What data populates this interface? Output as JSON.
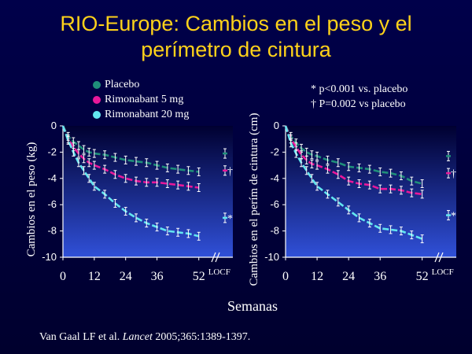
{
  "slide": {
    "title_line1": "RIO-Europe: Cambios en el peso y el",
    "title_line2": "perímetro de cintura",
    "citation_authors": "Van Gaal LF et al.",
    "citation_journal": "Lancet",
    "citation_rest": "2005;365:1389-1397."
  },
  "legend": [
    {
      "name": "Placebo",
      "color": "#1f8f7a"
    },
    {
      "name": "Rimonabant 5 mg",
      "color": "#e8189a"
    },
    {
      "name": "Rimonabant 20 mg",
      "color": "#62e6f0"
    }
  ],
  "notes": {
    "line1": "* p<0.001 vs. placebo",
    "line2": "† P=0.002 vs placebo"
  },
  "colors": {
    "placebo": "#1f8f7a",
    "rimonabant_5mg": "#e8189a",
    "rimonabant_20mg": "#62e6f0",
    "error_bar": "#ffffff",
    "axis": "#ffffff",
    "plot_bg_top": "#000030",
    "plot_bg_bottom": "#3050d8"
  },
  "chart_data": [
    {
      "type": "line",
      "ylabel": "Cambios en el peso (kg)",
      "xlabel": "Semanas",
      "x_ticks": [
        "0",
        "12",
        "24",
        "36",
        "52"
      ],
      "locf_label": "LOCF",
      "y_ticks": [
        "0",
        "-2",
        "-4",
        "-6",
        "-8",
        "-10"
      ],
      "xlim": [
        0,
        56
      ],
      "ylim": [
        -10,
        0
      ],
      "x": [
        0,
        2,
        4,
        6,
        8,
        10,
        12,
        16,
        20,
        24,
        28,
        32,
        36,
        40,
        44,
        48,
        52
      ],
      "series": [
        {
          "name": "Placebo",
          "values": [
            0,
            -0.8,
            -1.2,
            -1.5,
            -1.8,
            -2.0,
            -2.1,
            -2.2,
            -2.4,
            -2.6,
            -2.7,
            -2.8,
            -3.0,
            -3.2,
            -3.3,
            -3.4,
            -3.5
          ],
          "locf": -2.1,
          "marker": ""
        },
        {
          "name": "Rimonabant 5 mg",
          "values": [
            0,
            -1.0,
            -1.6,
            -2.1,
            -2.5,
            -2.8,
            -3.0,
            -3.3,
            -3.7,
            -4.0,
            -4.2,
            -4.3,
            -4.3,
            -4.4,
            -4.5,
            -4.6,
            -4.7
          ],
          "locf": -3.4,
          "marker": "†"
        },
        {
          "name": "Rimonabant 20 mg",
          "values": [
            0,
            -1.1,
            -2.0,
            -2.8,
            -3.4,
            -4.0,
            -4.6,
            -5.2,
            -5.9,
            -6.5,
            -7.0,
            -7.4,
            -7.7,
            -8.0,
            -8.1,
            -8.2,
            -8.4
          ],
          "locf": -7.0,
          "marker": "*"
        }
      ]
    },
    {
      "type": "line",
      "ylabel": "Cambios en el perím de cintura (cm)",
      "xlabel": "Semanas",
      "x_ticks": [
        "0",
        "12",
        "24",
        "36",
        "52"
      ],
      "locf_label": "LOCF",
      "y_ticks": [
        "0",
        "-2",
        "-4",
        "-6",
        "-8",
        "-10"
      ],
      "xlim": [
        0,
        56
      ],
      "ylim": [
        -10,
        0
      ],
      "x": [
        0,
        2,
        4,
        6,
        8,
        10,
        12,
        16,
        20,
        24,
        28,
        32,
        36,
        40,
        44,
        48,
        52
      ],
      "series": [
        {
          "name": "Placebo",
          "values": [
            0,
            -0.8,
            -1.3,
            -1.7,
            -2.0,
            -2.2,
            -2.3,
            -2.6,
            -2.8,
            -3.1,
            -3.2,
            -3.3,
            -3.5,
            -3.6,
            -3.8,
            -4.2,
            -4.4
          ],
          "locf": -2.3,
          "marker": ""
        },
        {
          "name": "Rimonabant 5 mg",
          "values": [
            0,
            -1.0,
            -1.6,
            -2.2,
            -2.6,
            -2.9,
            -3.0,
            -3.3,
            -3.7,
            -4.2,
            -4.4,
            -4.5,
            -4.8,
            -4.8,
            -4.9,
            -5.1,
            -5.2
          ],
          "locf": -3.6,
          "marker": "†"
        },
        {
          "name": "Rimonabant 20 mg",
          "values": [
            0,
            -1.3,
            -2.1,
            -2.8,
            -3.4,
            -4.0,
            -4.6,
            -5.2,
            -5.8,
            -6.4,
            -7.0,
            -7.4,
            -7.8,
            -7.9,
            -8.0,
            -8.3,
            -8.6
          ],
          "locf": -6.8,
          "marker": "*"
        }
      ]
    }
  ]
}
